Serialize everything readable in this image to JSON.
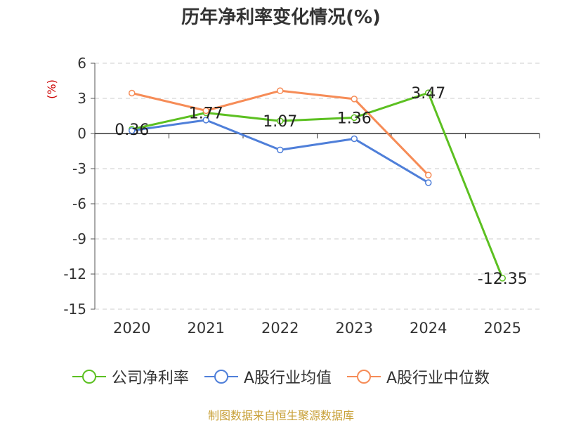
{
  "chart_data": {
    "type": "line",
    "title": "历年净利率变化情况(%)",
    "ylabel": "(%)",
    "categories": [
      "2020",
      "2021",
      "2022",
      "2023",
      "2024",
      "2025"
    ],
    "ylim": [
      -15,
      6
    ],
    "yticks": [
      6,
      3,
      0,
      -3,
      -6,
      -9,
      -12,
      -15
    ],
    "grid": true,
    "legend_position": "bottom",
    "series": [
      {
        "name": "公司净利率",
        "color": "#5cc021",
        "values": [
          0.36,
          1.77,
          1.07,
          1.36,
          3.47,
          -12.35
        ],
        "labels": [
          "0.36",
          "1.77",
          "1.07",
          "1.36",
          "3.47",
          "-12.35"
        ]
      },
      {
        "name": "A股行业均值",
        "color": "#4f7fd9",
        "values": [
          0.25,
          1.15,
          -1.4,
          -0.45,
          -4.2,
          null
        ]
      },
      {
        "name": "A股行业中位数",
        "color": "#f68c57",
        "values": [
          3.45,
          1.95,
          3.65,
          2.95,
          -3.55,
          null
        ]
      }
    ]
  },
  "source_text": "制图数据来自恒生聚源数据库",
  "source_color": "#c8a038"
}
